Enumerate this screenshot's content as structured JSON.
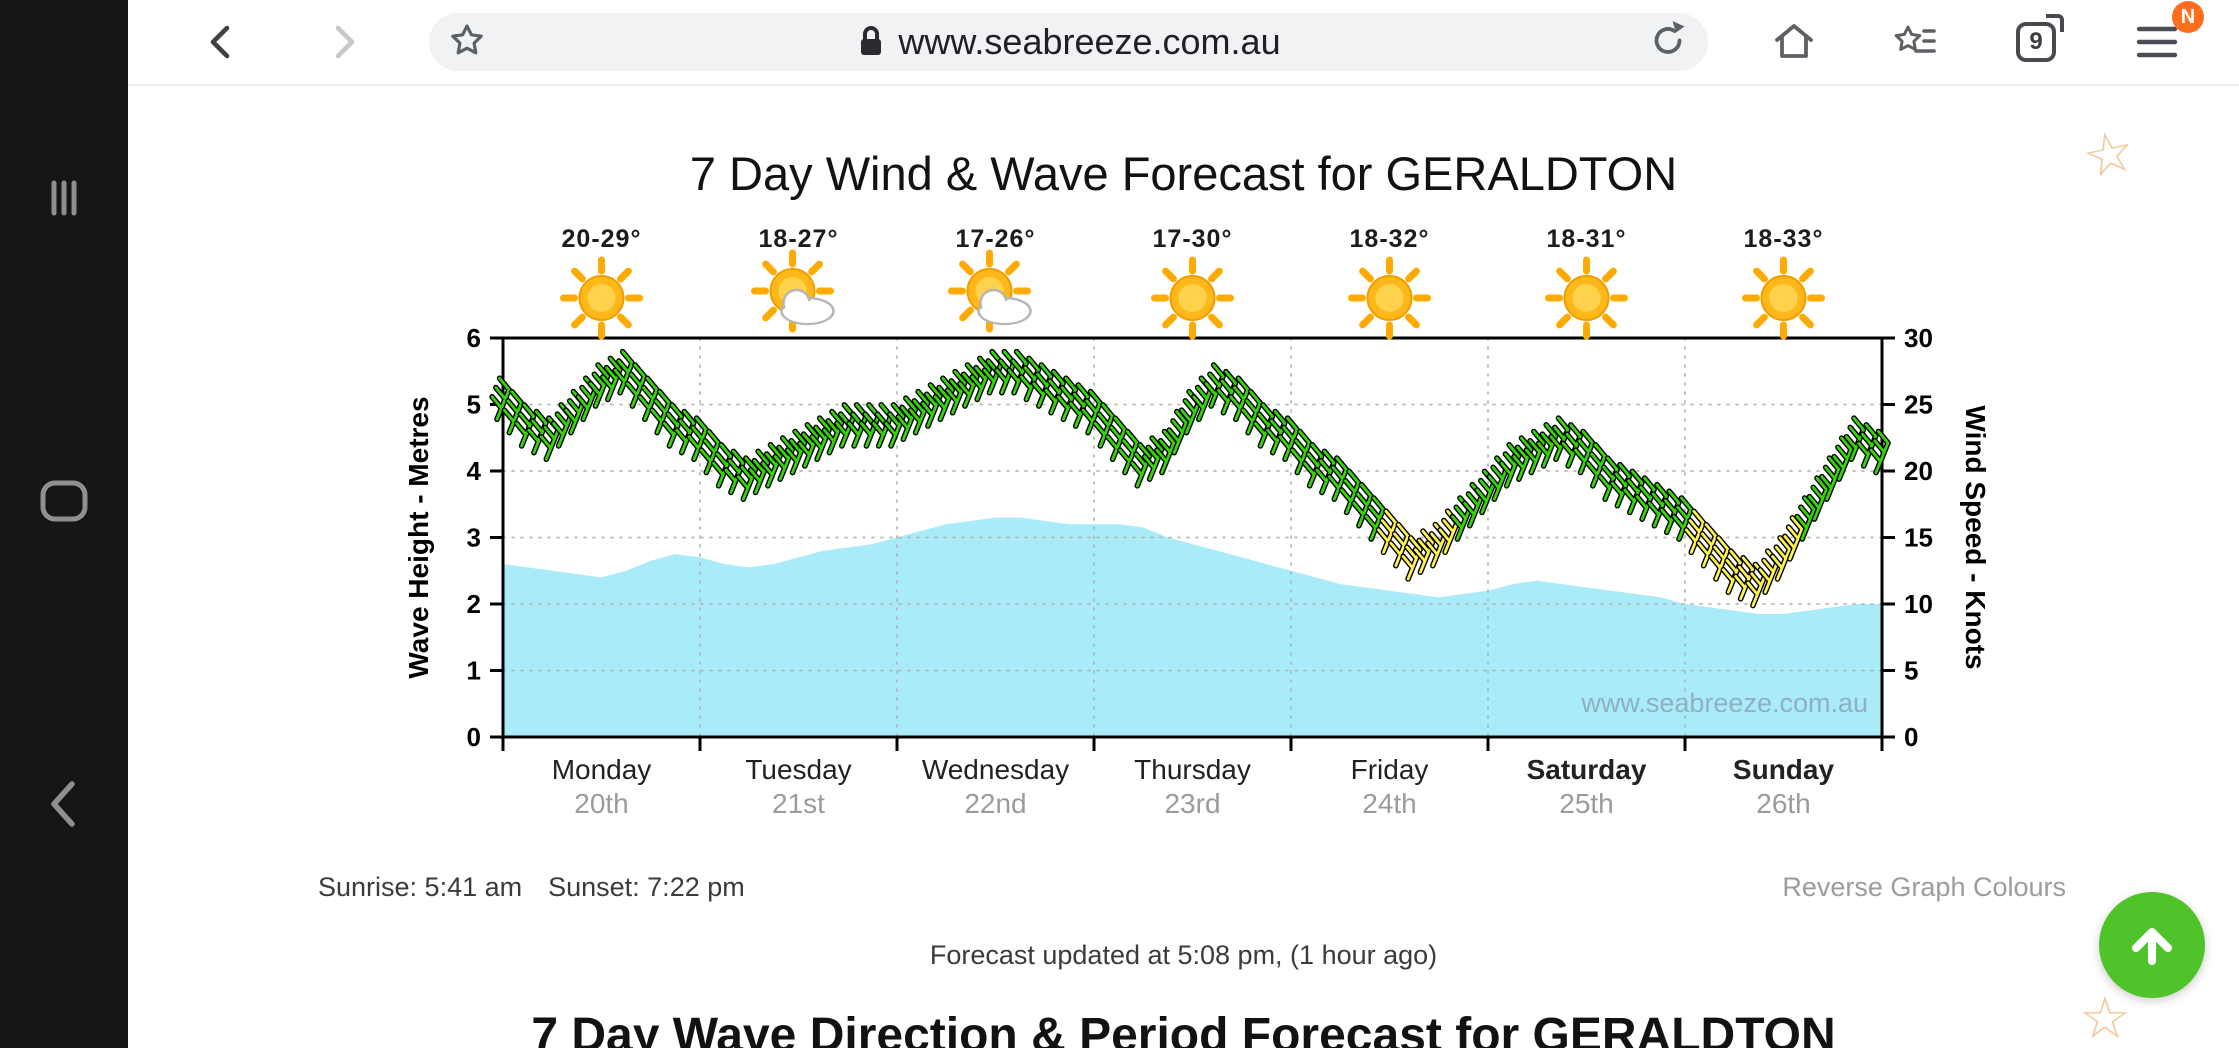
{
  "browser": {
    "url": "www.seabreeze.com.au",
    "tab_count": "9",
    "menu_badge": "N",
    "icons": {
      "back": "chevron-left",
      "forward": "chevron-right",
      "bookmark_star": "star-outline",
      "lock": "padlock",
      "refresh": "circular-arrow",
      "home": "house-outline",
      "bookmarks": "star-with-list",
      "tabs": "stacked-squares-with-count",
      "menu": "hamburger"
    }
  },
  "side_rail": {
    "icons": [
      {
        "name": "drag-handle",
        "shape": "three-vertical-bars"
      },
      {
        "name": "recent-apps",
        "shape": "rounded-square-outline"
      },
      {
        "name": "back",
        "shape": "chevron-left"
      }
    ]
  },
  "page": {
    "title": "7 Day Wind & Wave Forecast for GERALDTON",
    "sunrise": "Sunrise: 5:41 am",
    "sunset": "Sunset: 7:22 pm",
    "reverse_link": "Reverse Graph Colours",
    "updated": "Forecast updated at 5:08 pm, (1 hour ago)",
    "next_section_title": "7 Day Wave Direction & Period Forecast for GERALDTON"
  },
  "decorations": {
    "star_glyph": "☆"
  },
  "days": [
    {
      "name": "Monday",
      "date": "20th",
      "temp": "20-29°",
      "icon": "sunny",
      "bold": false
    },
    {
      "name": "Tuesday",
      "date": "21st",
      "temp": "18-27°",
      "icon": "partly-cloudy",
      "bold": false
    },
    {
      "name": "Wednesday",
      "date": "22nd",
      "temp": "17-26°",
      "icon": "partly-cloudy",
      "bold": false
    },
    {
      "name": "Thursday",
      "date": "23rd",
      "temp": "17-30°",
      "icon": "sunny",
      "bold": false
    },
    {
      "name": "Friday",
      "date": "24th",
      "temp": "18-32°",
      "icon": "sunny",
      "bold": false
    },
    {
      "name": "Saturday",
      "date": "25th",
      "temp": "18-31°",
      "icon": "sunny",
      "bold": true
    },
    {
      "name": "Sunday",
      "date": "26th",
      "temp": "18-33°",
      "icon": "sunny",
      "bold": true
    }
  ],
  "chart_data": {
    "type": "area+wind-barbs",
    "title": "7 Day Wind & Wave Forecast for GERALDTON",
    "left_axis": {
      "label": "Wave Height - Metres",
      "min": 0,
      "max": 6,
      "ticks": [
        0,
        1,
        2,
        3,
        4,
        5,
        6
      ]
    },
    "right_axis": {
      "label": "Wind Speed - Knots",
      "min": 0,
      "max": 30,
      "ticks": [
        0,
        5,
        10,
        15,
        20,
        25,
        30
      ]
    },
    "x_days": [
      "Monday 20th",
      "Tuesday 21st",
      "Wednesday 22nd",
      "Thursday 23rd",
      "Friday 24th",
      "Saturday 25th",
      "Sunday 26th"
    ],
    "sample_interval_hours": 3,
    "series": [
      {
        "name": "Wave Height",
        "unit": "m",
        "axis": "left",
        "style": "area",
        "values": [
          2.6,
          2.55,
          2.5,
          2.45,
          2.4,
          2.5,
          2.65,
          2.75,
          2.7,
          2.6,
          2.55,
          2.6,
          2.7,
          2.8,
          2.85,
          2.9,
          3.0,
          3.1,
          3.2,
          3.25,
          3.3,
          3.3,
          3.25,
          3.2,
          3.2,
          3.2,
          3.15,
          3.0,
          2.9,
          2.8,
          2.7,
          2.6,
          2.5,
          2.4,
          2.3,
          2.25,
          2.2,
          2.15,
          2.1,
          2.15,
          2.2,
          2.3,
          2.35,
          2.3,
          2.25,
          2.2,
          2.15,
          2.1,
          2.0,
          1.95,
          1.9,
          1.85,
          1.85,
          1.9,
          1.95,
          2.0,
          2.0
        ]
      },
      {
        "name": "Wind Speed",
        "unit": "knots",
        "axis": "right",
        "style": "wind-barbs",
        "values": [
          25,
          23,
          22,
          24,
          26,
          27,
          25,
          23,
          22,
          20,
          19,
          20,
          21,
          22,
          23,
          23,
          23,
          24,
          25,
          26,
          27,
          27,
          26,
          25,
          24,
          22,
          20,
          21,
          24,
          26,
          25,
          23,
          22,
          20,
          19,
          17,
          15,
          13,
          14,
          16,
          18,
          20,
          21,
          22,
          21,
          19,
          18,
          17,
          16,
          14,
          12,
          11,
          13,
          16,
          19,
          22,
          21
        ]
      }
    ],
    "wind_light_threshold_knots": 15,
    "colors": {
      "wave_fill": "#a9ebf8",
      "wind_strong": "#35d50a",
      "wind_light": "#fff34d",
      "grid": "#b3b3b3"
    },
    "watermark": "www.seabreeze.com.au"
  }
}
